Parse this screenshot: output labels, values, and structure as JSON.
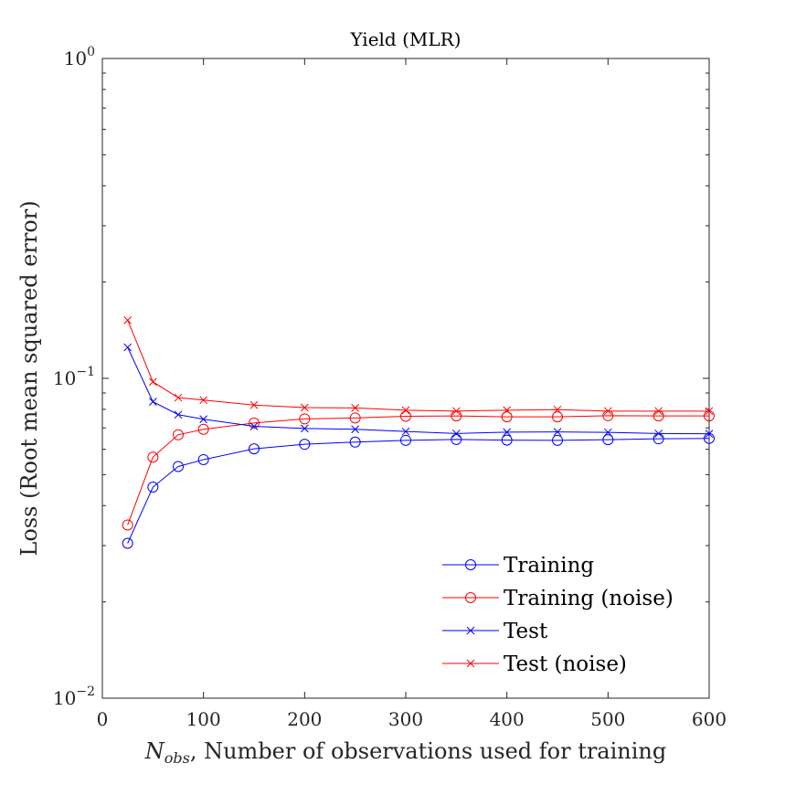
{
  "chart_data": {
    "type": "line",
    "title": "Yield (MLR)",
    "xlabel_symbol": "N",
    "xlabel_subscript": "obs",
    "xlabel_rest": ", Number of observations used for training",
    "ylabel": "Loss (Root mean squared error)",
    "xlim": [
      0,
      600
    ],
    "ylim": [
      0.01,
      1
    ],
    "yscale": "log",
    "xticks": [
      0,
      100,
      200,
      300,
      400,
      500,
      600
    ],
    "yticks": [
      {
        "value": 0.01,
        "base": "10",
        "exp": "−2"
      },
      {
        "value": 0.1,
        "base": "10",
        "exp": "−1"
      },
      {
        "value": 1,
        "base": "10",
        "exp": "0"
      }
    ],
    "legend_position": "bottom-right",
    "x": [
      25,
      50,
      75,
      100,
      150,
      200,
      250,
      300,
      350,
      400,
      450,
      500,
      550,
      600
    ],
    "series": [
      {
        "name": "Training",
        "color": "#0000ff",
        "marker": "circle",
        "values": [
          0.0305,
          0.0457,
          0.053,
          0.0557,
          0.0602,
          0.0622,
          0.0632,
          0.064,
          0.0644,
          0.0641,
          0.064,
          0.0643,
          0.0647,
          0.0649
        ]
      },
      {
        "name": "Training (noise)",
        "color": "#ff0000",
        "marker": "circle",
        "values": [
          0.0348,
          0.0567,
          0.0666,
          0.0693,
          0.0725,
          0.0747,
          0.0752,
          0.0761,
          0.0763,
          0.0758,
          0.0758,
          0.0764,
          0.0763,
          0.0763
        ]
      },
      {
        "name": "Test",
        "color": "#0000ff",
        "marker": "x",
        "values": [
          0.125,
          0.0845,
          0.077,
          0.0745,
          0.0708,
          0.0697,
          0.0693,
          0.0682,
          0.0672,
          0.0679,
          0.068,
          0.0678,
          0.0672,
          0.0671
        ]
      },
      {
        "name": "Test (noise)",
        "color": "#ff0000",
        "marker": "x",
        "values": [
          0.152,
          0.0975,
          0.087,
          0.0855,
          0.0825,
          0.081,
          0.0808,
          0.0795,
          0.079,
          0.0795,
          0.0798,
          0.079,
          0.079,
          0.079
        ]
      }
    ]
  }
}
